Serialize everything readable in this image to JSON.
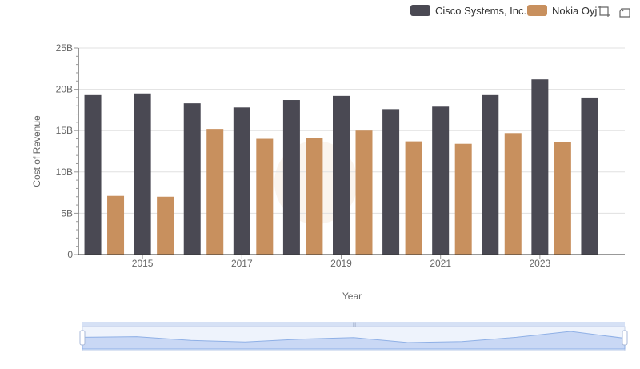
{
  "legend": {
    "items": [
      {
        "label": "Cisco Systems, Inc.",
        "color": "#4a4953"
      },
      {
        "label": "Nokia Oyj",
        "color": "#c8905e"
      }
    ]
  },
  "toolbox": {
    "icons": [
      "zoom-icon",
      "restore-icon"
    ]
  },
  "chart_data": {
    "type": "bar",
    "xlabel": "Year",
    "ylabel": "Cost of Revenue",
    "x": [
      2014,
      2015,
      2016,
      2017,
      2018,
      2019,
      2020,
      2021,
      2022,
      2023,
      2024
    ],
    "x_tick_labels": [
      "2015",
      "2017",
      "2019",
      "2021",
      "2023"
    ],
    "y_tick_labels": [
      "0",
      "5B",
      "10B",
      "15B",
      "20B",
      "25B"
    ],
    "ylim": [
      0,
      25000000000
    ],
    "grid": true,
    "legend_position": "top-right",
    "series": [
      {
        "name": "Cisco Systems, Inc.",
        "color": "#4a4953",
        "values": [
          19300000000,
          19500000000,
          18300000000,
          17800000000,
          18700000000,
          19200000000,
          17600000000,
          17900000000,
          19300000000,
          21200000000,
          19000000000
        ]
      },
      {
        "name": "Nokia Oyj",
        "color": "#c8905e",
        "values": [
          7100000000,
          7000000000,
          15200000000,
          14000000000,
          14100000000,
          15000000000,
          13700000000,
          13400000000,
          14700000000,
          13600000000,
          null
        ]
      }
    ]
  }
}
